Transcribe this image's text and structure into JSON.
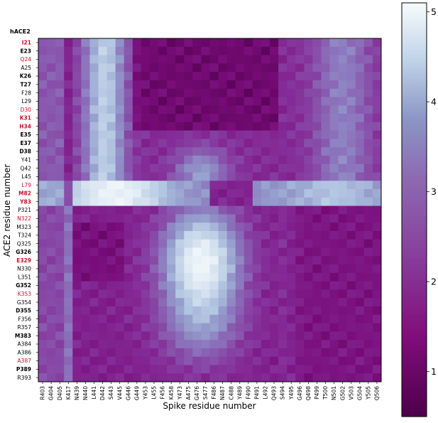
{
  "chart_data": {
    "type": "heatmap",
    "corner_label": "hACE2",
    "xlabel": "Spike residue number",
    "ylabel": "ACE2 residue number",
    "x_categories": [
      "R403",
      "G404",
      "D405",
      "K417",
      "N439",
      "N440",
      "L441",
      "D442",
      "S443",
      "V445",
      "G446",
      "G449",
      "Y453",
      "L455",
      "F456",
      "K458",
      "Y473",
      "A475",
      "G476",
      "S477",
      "F486",
      "N487",
      "C488",
      "Y489",
      "F490",
      "P491",
      "L492",
      "Q493",
      "S494",
      "Y495",
      "G496",
      "Q498",
      "P499",
      "T500",
      "N501",
      "G502",
      "V503",
      "G504",
      "Y505",
      "Q506"
    ],
    "y_categories": [
      {
        "label": "I21",
        "style": "red-bold"
      },
      {
        "label": "E23",
        "style": "bold"
      },
      {
        "label": "Q24",
        "style": "red"
      },
      {
        "label": "A25",
        "style": "normal"
      },
      {
        "label": "K26",
        "style": "bold"
      },
      {
        "label": "T27",
        "style": "bold"
      },
      {
        "label": "F28",
        "style": "normal"
      },
      {
        "label": "L29",
        "style": "normal"
      },
      {
        "label": "D30",
        "style": "red"
      },
      {
        "label": "K31",
        "style": "red-bold"
      },
      {
        "label": "H34",
        "style": "red-bold"
      },
      {
        "label": "E35",
        "style": "bold"
      },
      {
        "label": "E37",
        "style": "bold"
      },
      {
        "label": "D38",
        "style": "bold"
      },
      {
        "label": "Y41",
        "style": "normal"
      },
      {
        "label": "Q42",
        "style": "normal"
      },
      {
        "label": "L45",
        "style": "normal"
      },
      {
        "label": "L79",
        "style": "red"
      },
      {
        "label": "M82",
        "style": "red-bold"
      },
      {
        "label": "Y83",
        "style": "red-bold"
      },
      {
        "label": "P321",
        "style": "normal"
      },
      {
        "label": "N322",
        "style": "red"
      },
      {
        "label": "M323",
        "style": "normal"
      },
      {
        "label": "T324",
        "style": "normal"
      },
      {
        "label": "Q325",
        "style": "normal"
      },
      {
        "label": "G326",
        "style": "bold"
      },
      {
        "label": "E329",
        "style": "red-bold"
      },
      {
        "label": "N330",
        "style": "normal"
      },
      {
        "label": "L351",
        "style": "normal"
      },
      {
        "label": "G352",
        "style": "bold"
      },
      {
        "label": "K353",
        "style": "red"
      },
      {
        "label": "G354",
        "style": "normal"
      },
      {
        "label": "D355",
        "style": "bold"
      },
      {
        "label": "F356",
        "style": "normal"
      },
      {
        "label": "R357",
        "style": "normal"
      },
      {
        "label": "M383",
        "style": "bold"
      },
      {
        "label": "A384",
        "style": "normal"
      },
      {
        "label": "A386",
        "style": "normal"
      },
      {
        "label": "A387",
        "style": "red"
      },
      {
        "label": "P389",
        "style": "bold"
      },
      {
        "label": "R393",
        "style": "normal"
      }
    ],
    "colorbar": {
      "min": 0.5,
      "max": 5.1,
      "ticks": [
        1,
        2,
        3,
        4,
        5
      ]
    },
    "colors": {
      "low": "#4d004b",
      "mid_low": "#88419d",
      "mid": "#8c96c6",
      "mid_high": "#bfd3e6",
      "high": "#f7fcfd",
      "red_label": "#c8102e"
    },
    "grid": false
  }
}
